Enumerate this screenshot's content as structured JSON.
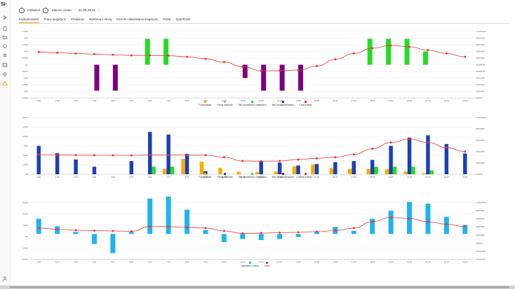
{
  "app": {
    "logo_text": "SI",
    "logo_dot": "•"
  },
  "topbar": {
    "refresh_label": "Odśwież",
    "range_label": "Zakres czasu",
    "date_label": "31.08.2024"
  },
  "tabs": [
    {
      "label": "Podsumowanie",
      "active": true
    },
    {
      "label": "Praca magazynu",
      "active": false
    },
    {
      "label": "Produkcja",
      "active": false
    },
    {
      "label": "Wymiana z siecią",
      "active": false
    },
    {
      "label": "Poziom naładowania magazynu",
      "active": false
    },
    {
      "label": "Pobór",
      "active": false
    },
    {
      "label": "Zysk/Koszt",
      "active": false
    }
  ],
  "sidebar_icons": [
    "menu-expand-icon",
    "document-icon",
    "folder-icon",
    "chart-icon",
    "list-icon",
    "table-icon",
    "settings-icon",
    "warning-icon"
  ],
  "colors": {
    "accent": "#e8a000",
    "price_line": "#e53935",
    "green": "#22dd22",
    "purple": "#7b0080",
    "blue": "#1a3fb8",
    "orange": "#ffaa00",
    "lightblue": "#1eb4f0",
    "lightpurple": "#c9a0dc"
  },
  "chart_data": [
    {
      "type": "bar",
      "categories": [
        "0:00",
        "1:00",
        "2:00",
        "3:00",
        "4:00",
        "5:00",
        "6:00",
        "7:00",
        "8:00",
        "9:00",
        "10:00",
        "11:00",
        "12:00",
        "13:00",
        "14:00",
        "15:00",
        "16:00",
        "17:00",
        "18:00",
        "19:00",
        "20:00",
        "21:00",
        "22:00",
        "23:00"
      ],
      "y_ticks": [
        "2,5MW",
        "2MW",
        "1,5MW",
        "1MW",
        "500kW",
        "0W",
        "-500kW",
        "-1MW",
        "-1,5MW",
        "-2MW",
        "-2,5MW"
      ],
      "y2_ticks": [
        "1 000zł/MWh",
        "900zł/MWh",
        "800zł/MWh",
        "700zł/MWh",
        "600zł/MWh",
        "500zł/MWh",
        "400zł/MWh",
        "300zł/MWh",
        "200zł/MWh",
        "100zł/MWh",
        "0zł/MWh"
      ],
      "ylim": [
        -2.5,
        2.5
      ],
      "y2lim": [
        0,
        1000
      ],
      "series": [
        {
          "name": "Fotowoltaika",
          "color": "#ffaa00",
          "values": [
            0,
            0,
            0,
            0,
            0,
            0,
            0,
            0,
            0,
            0,
            0,
            0,
            0,
            0,
            0,
            0,
            0,
            0,
            0,
            0,
            0,
            0,
            0,
            0
          ]
        },
        {
          "name": "Farmy wiatrowe",
          "color": "#c9a0dc",
          "values": [
            0,
            0,
            0,
            0,
            0,
            0,
            0,
            0,
            0,
            0,
            0,
            0,
            0,
            0,
            0,
            0,
            0,
            0,
            0,
            0,
            0,
            0,
            0,
            0
          ]
        },
        {
          "name": "Moc sprzedana z magazynu",
          "color": "#22dd22",
          "values": [
            0,
            0,
            0,
            0,
            0,
            0,
            1.95,
            1.95,
            0,
            0,
            0,
            0,
            0,
            0,
            0,
            0,
            0,
            0,
            1.95,
            1.95,
            1.95,
            1.0,
            0,
            0
          ]
        },
        {
          "name": "Moc zmagazynowana",
          "color": "#7b0080",
          "values": [
            0,
            0,
            0,
            -1.95,
            -1.95,
            0,
            0,
            0,
            0,
            0,
            0,
            -1.0,
            -1.95,
            -1.95,
            -1.95,
            0,
            0,
            0,
            0,
            0,
            0,
            0,
            0,
            0
          ]
        },
        {
          "name": "Cena energii",
          "color": "#e53935",
          "line": true,
          "values": [
            690,
            680,
            670,
            660,
            650,
            640,
            640,
            635,
            620,
            590,
            540,
            470,
            410,
            410,
            420,
            480,
            580,
            670,
            750,
            790,
            770,
            720,
            670,
            620
          ]
        }
      ]
    },
    {
      "type": "bar",
      "categories": [
        "0:00",
        "1:00",
        "2:00",
        "3:00",
        "4:00",
        "5:00",
        "6:00",
        "7:00",
        "8:00",
        "9:00",
        "10:00",
        "11:00",
        "12:00",
        "13:00",
        "14:00",
        "15:00",
        "16:00",
        "17:00",
        "18:00",
        "19:00",
        "20:00",
        "21:00",
        "22:00",
        "23:00"
      ],
      "y_ticks": [
        "150kW",
        "125kW",
        "100kW",
        "75kW",
        "50kW",
        "25kW",
        "0W"
      ],
      "y2_ticks": [
        "1 000zł/MWh",
        "800zł/MWh",
        "600zł/MWh",
        "400zł/MWh",
        "200zł/MWh",
        "0zł/MWh"
      ],
      "ylim": [
        0,
        150
      ],
      "y2lim": [
        0,
        1000
      ],
      "series": [
        {
          "name": "Fotowoltaika",
          "color": "#ffaa00",
          "values": [
            0,
            0,
            0,
            0,
            0,
            0,
            0,
            14,
            41,
            33,
            17,
            7,
            6,
            7,
            21,
            26,
            16,
            14,
            14,
            13,
            8,
            3,
            0,
            0
          ]
        },
        {
          "name": "Farmy wiatrowe",
          "color": "#1a3fb8",
          "values": [
            75,
            56,
            39,
            20,
            0,
            35,
            112,
            105,
            54,
            8,
            0,
            0,
            34,
            31,
            23,
            27,
            32,
            35,
            38,
            75,
            97,
            103,
            80,
            55
          ]
        },
        {
          "name": "Moc sprzedana z magazynu",
          "color": "#22dd22",
          "values": [
            0,
            0,
            0,
            0,
            0,
            0,
            20,
            20,
            0,
            0,
            0,
            0,
            0,
            0,
            0,
            0,
            0,
            0,
            20,
            20,
            20,
            10,
            0,
            0
          ]
        },
        {
          "name": "Moc zmagazynowana",
          "color": "#7b0080",
          "values": [
            0,
            0,
            0,
            0,
            0,
            0,
            0,
            0,
            0,
            0,
            0,
            0,
            0,
            0,
            0,
            0,
            0,
            0,
            0,
            0,
            0,
            0,
            0,
            0
          ]
        },
        {
          "name": "Cena energii",
          "color": "#e53935",
          "line": true,
          "values": [
            345,
            340,
            338,
            336,
            334,
            332,
            340,
            340,
            338,
            336,
            300,
            235,
            230,
            235,
            260,
            280,
            300,
            350,
            450,
            560,
            620,
            560,
            470,
            400
          ]
        }
      ]
    },
    {
      "type": "bar",
      "categories": [
        "0:00",
        "1:00",
        "2:00",
        "3:00",
        "4:00",
        "5:00",
        "6:00",
        "7:00",
        "8:00",
        "9:00",
        "10:00",
        "11:00",
        "12:00",
        "13:00",
        "14:00",
        "15:00",
        "16:00",
        "17:00",
        "18:00",
        "19:00",
        "20:00",
        "21:00",
        "22:00",
        "23:00"
      ],
      "y_ticks": [
        "150kW",
        "100kW",
        "50kW",
        "0W",
        "-50kW",
        "-100kW"
      ],
      "y2_ticks": [
        "1 000zł/MWh",
        "800zł/MWh",
        "600zł/MWh",
        "400zł/MWh",
        "200zł/MWh",
        "0zł/MWh",
        "-200zł/MWh",
        "-400zł/MWh"
      ],
      "ylim": [
        -125,
        155
      ],
      "y2lim": [
        -500,
        1100
      ],
      "series": [
        {
          "name": "Wymiana z siecią",
          "color": "#1eb4f0",
          "values": [
            75,
            38,
            10,
            -50,
            -95,
            10,
            175,
            185,
            120,
            20,
            -40,
            -25,
            -30,
            -25,
            -15,
            10,
            35,
            15,
            75,
            115,
            158,
            150,
            85,
            45
          ]
        },
        {
          "name": "Cena",
          "color": "#e53935",
          "line": true,
          "values": [
            380,
            350,
            320,
            310,
            300,
            290,
            420,
            420,
            400,
            380,
            300,
            230,
            240,
            250,
            260,
            280,
            310,
            380,
            560,
            680,
            650,
            560,
            490,
            420
          ]
        }
      ]
    }
  ]
}
